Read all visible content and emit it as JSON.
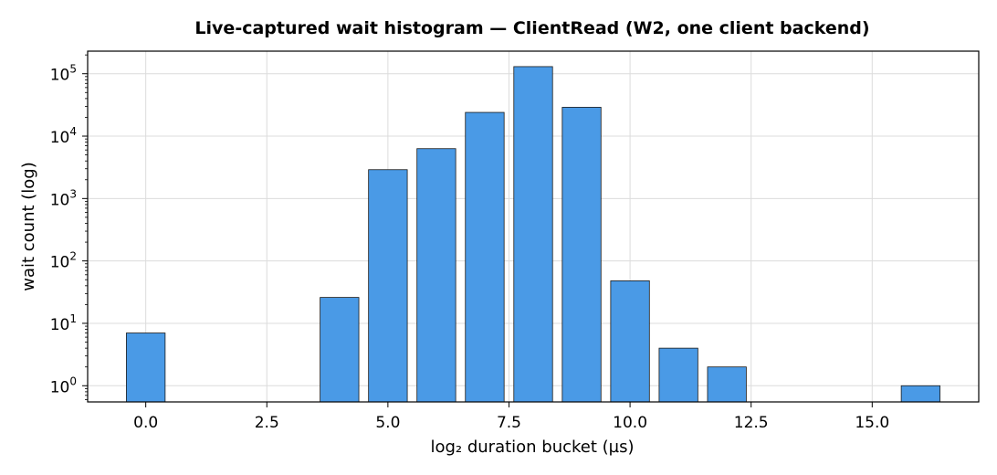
{
  "chart_data": {
    "type": "bar",
    "title": "Live-captured wait histogram — ClientRead (W2, one client backend)",
    "xlabel": "log₂ duration bucket (µs)",
    "ylabel": "wait count (log)",
    "y_scale": "log",
    "grid": true,
    "bar_color": "#4a9ae6",
    "bar_edge_color": "#1a1a1a",
    "xlim": [
      -1.2,
      17.2
    ],
    "ylim": [
      0.55,
      230000
    ],
    "x_ticks": [
      0,
      2.5,
      5,
      7.5,
      10,
      12.5,
      15
    ],
    "x_tick_labels": [
      "0.0",
      "2.5",
      "5.0",
      "7.5",
      "10.0",
      "12.5",
      "15.0"
    ],
    "y_ticks": [
      {
        "value": 1,
        "base": "10",
        "exp": "0"
      },
      {
        "value": 10,
        "base": "10",
        "exp": "1"
      },
      {
        "value": 100,
        "base": "10",
        "exp": "2"
      },
      {
        "value": 1000,
        "base": "10",
        "exp": "3"
      },
      {
        "value": 10000,
        "base": "10",
        "exp": "4"
      },
      {
        "value": 100000,
        "base": "10",
        "exp": "5"
      }
    ],
    "x": [
      0,
      4,
      5,
      6,
      7,
      8,
      9,
      10,
      11,
      12,
      16
    ],
    "values": [
      7,
      26,
      2900,
      6300,
      24000,
      130000,
      29000,
      48,
      4,
      2,
      1
    ],
    "bar_width": 0.8
  }
}
